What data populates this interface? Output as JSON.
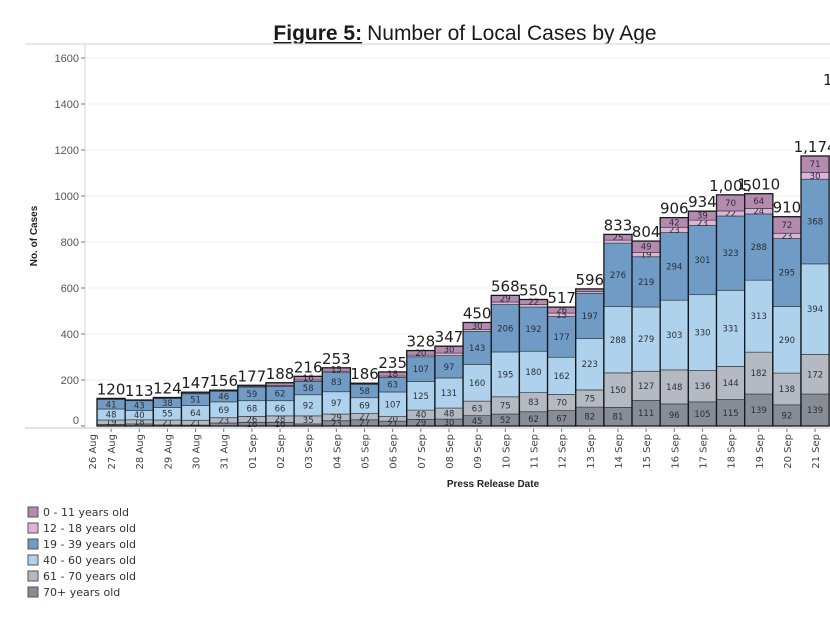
{
  "title": {
    "prefix": "Figure 5:",
    "text": "Number of Local Cases by Age"
  },
  "chart_data": {
    "type": "bar",
    "stacked": true,
    "title": "Figure 5: Number of Local Cases by Age",
    "xlabel": "Press Release Date",
    "ylabel": "No. of Cases",
    "ylim": [
      0,
      1600
    ],
    "yticks": [
      0,
      200,
      400,
      600,
      800,
      1000,
      1200,
      1400,
      1600
    ],
    "grid": true,
    "legend_position": "bottom-left",
    "extra_left_tick_label": "26 Aug",
    "offscreen_partial_total": "1",
    "categories": [
      "27 Aug",
      "28 Aug",
      "29 Aug",
      "30 Aug",
      "31 Aug",
      "01 Sep",
      "02 Sep",
      "03 Sep",
      "04 Sep",
      "05 Sep",
      "06 Sep",
      "07 Sep",
      "08 Sep",
      "09 Sep",
      "10 Sep",
      "11 Sep",
      "12 Sep",
      "13 Sep",
      "14 Sep",
      "15 Sep",
      "16 Sep",
      "17 Sep",
      "18 Sep",
      "19 Sep",
      "20 Sep",
      "21 Sep"
    ],
    "totals": [
      "120",
      "113",
      "124",
      "147",
      "156",
      "177",
      "188",
      "216",
      "253",
      "186",
      "235",
      "328",
      "347",
      "450",
      "568",
      "550",
      "517",
      "596",
      "833",
      "804",
      "906",
      "934",
      "1,005",
      "1,010",
      "910",
      "1,174"
    ],
    "series": [
      {
        "name": "0 - 11 years old",
        "key": "0-11",
        "color": "#b48aae",
        "values": [
          3,
          2,
          3,
          4,
          3,
          5,
          12,
          16,
          15,
          3,
          18,
          20,
          30,
          30,
          29,
          22,
          26,
          11,
          25,
          49,
          42,
          39,
          70,
          64,
          72,
          71
        ]
      },
      {
        "name": "12 - 18 years old",
        "key": "12-18",
        "color": "#ddb3d6",
        "values": [
          2,
          1,
          2,
          3,
          2,
          3,
          4,
          6,
          6,
          2,
          6,
          7,
          11,
          9,
          11,
          11,
          15,
          8,
          13,
          19,
          23,
          23,
          22,
          24,
          23,
          30
        ]
      },
      {
        "name": "19 - 39 years old",
        "key": "19-39",
        "color": "#6f9bc5",
        "values": [
          41,
          43,
          38,
          51,
          46,
          59,
          62,
          58,
          83,
          58,
          63,
          107,
          97,
          143,
          206,
          192,
          177,
          197,
          276,
          219,
          294,
          301,
          323,
          288,
          295,
          368
        ]
      },
      {
        "name": "40 - 60 years old",
        "key": "40-60",
        "color": "#aed2ec",
        "values": [
          48,
          40,
          55,
          64,
          69,
          68,
          66,
          92,
          97,
          69,
          107,
          125,
          131,
          160,
          195,
          180,
          162,
          223,
          288,
          279,
          303,
          330,
          331,
          313,
          290,
          394
        ]
      },
      {
        "name": "61 - 70 years old",
        "key": "61-70",
        "color": "#b5b9c1",
        "values": [
          19,
          18,
          21,
          21,
          23,
          26,
          28,
          35,
          29,
          27,
          20,
          40,
          48,
          63,
          75,
          83,
          70,
          75,
          150,
          127,
          148,
          136,
          144,
          182,
          138,
          172
        ]
      },
      {
        "name": "70+ years old",
        "key": "70plus",
        "color": "#878c95",
        "values": [
          7,
          9,
          5,
          4,
          13,
          16,
          16,
          9,
          23,
          27,
          21,
          29,
          30,
          45,
          52,
          62,
          67,
          82,
          81,
          111,
          96,
          105,
          115,
          139,
          92,
          139
        ]
      }
    ]
  },
  "legend": {
    "items": [
      {
        "label": "0 - 11 years old"
      },
      {
        "label": "12 - 18 years old"
      },
      {
        "label": "19 - 39 years old"
      },
      {
        "label": "40 - 60 years old"
      },
      {
        "label": "61 - 70 years old"
      },
      {
        "label": "70+ years old"
      }
    ]
  }
}
